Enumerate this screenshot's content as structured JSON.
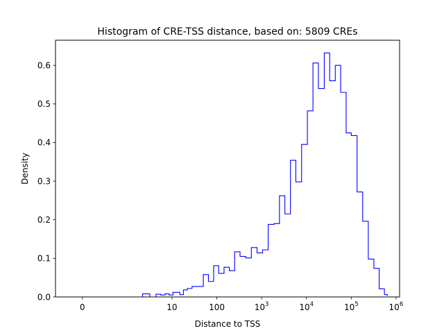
{
  "chart_data": {
    "type": "histogram",
    "style": "step",
    "title": "Histogram of CRE-TSS distance, based on: 5809 CREs",
    "xlabel": "Distance to TSS",
    "ylabel": "Density",
    "xscale": "symlog",
    "xlim": [
      -0.6,
      1200000
    ],
    "ylim": [
      0,
      0.665
    ],
    "grid": false,
    "color": "#0000ff",
    "x_ticks": [
      {
        "value": 0,
        "base": "0",
        "exp": ""
      },
      {
        "value": 10,
        "base": "10",
        "exp": ""
      },
      {
        "value": 100,
        "base": "100",
        "exp": ""
      },
      {
        "value": 1000,
        "base": "10",
        "exp": "3"
      },
      {
        "value": 10000,
        "base": "10",
        "exp": "4"
      },
      {
        "value": 100000,
        "base": "10",
        "exp": "5"
      },
      {
        "value": 1000000,
        "base": "10",
        "exp": "6"
      }
    ],
    "y_ticks": [
      "0.0",
      "0.1",
      "0.2",
      "0.3",
      "0.4",
      "0.5",
      "0.6"
    ],
    "bin_edges": [
      0,
      1.2,
      2.2,
      3.2,
      4.4,
      5.6,
      7,
      8.6,
      10.5,
      12.6,
      15,
      18,
      22,
      28,
      36,
      50,
      65,
      85,
      110,
      145,
      190,
      250,
      330,
      440,
      590,
      790,
      1050,
      1400,
      1900,
      2500,
      3300,
      4400,
      5800,
      7800,
      10500,
      14000,
      18500,
      25000,
      33000,
      44000,
      58000,
      77000,
      100000,
      135000,
      180000,
      240000,
      320000,
      420000,
      550000,
      640000
    ],
    "densities": [
      0,
      0,
      0.008,
      0,
      0.007,
      0.005,
      0.008,
      0.005,
      0.012,
      0.012,
      0.006,
      0.018,
      0.022,
      0.027,
      0.027,
      0.058,
      0.04,
      0.081,
      0.061,
      0.077,
      0.068,
      0.117,
      0.105,
      0.101,
      0.128,
      0.114,
      0.122,
      0.188,
      0.19,
      0.262,
      0.215,
      0.354,
      0.298,
      0.395,
      0.482,
      0.606,
      0.54,
      0.632,
      0.56,
      0.6,
      0.53,
      0.425,
      0.418,
      0.272,
      0.196,
      0.098,
      0.074,
      0.021,
      0.006,
      0.003
    ]
  }
}
